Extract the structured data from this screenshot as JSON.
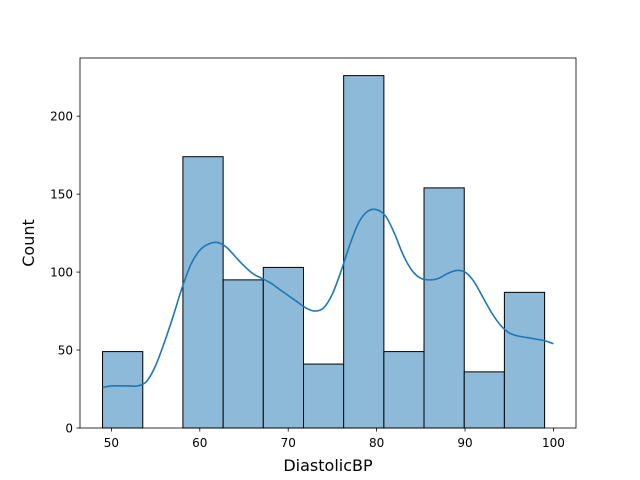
{
  "chart_data": {
    "type": "bar",
    "subtype": "histogram-with-kde",
    "xlabel": "DiastolicBP",
    "ylabel": "Count",
    "xlim": [
      46.45,
      102.55
    ],
    "ylim": [
      0,
      237.3
    ],
    "x_ticks": [
      50,
      60,
      70,
      80,
      90,
      100
    ],
    "y_ticks": [
      0,
      50,
      100,
      150,
      200
    ],
    "bins": [
      {
        "start": 49.0,
        "end": 53.55,
        "count": 49
      },
      {
        "start": 53.55,
        "end": 58.09,
        "count": 0
      },
      {
        "start": 58.09,
        "end": 62.64,
        "count": 174
      },
      {
        "start": 62.64,
        "end": 67.18,
        "count": 95
      },
      {
        "start": 67.18,
        "end": 71.73,
        "count": 103
      },
      {
        "start": 71.73,
        "end": 76.27,
        "count": 41
      },
      {
        "start": 76.27,
        "end": 80.82,
        "count": 226
      },
      {
        "start": 80.82,
        "end": 85.36,
        "count": 49
      },
      {
        "start": 85.36,
        "end": 89.91,
        "count": 154
      },
      {
        "start": 89.91,
        "end": 94.45,
        "count": 36
      },
      {
        "start": 94.45,
        "end": 99.0,
        "count": 87
      }
    ],
    "kde": {
      "x": [
        49,
        50,
        51,
        52,
        53,
        54,
        55,
        56,
        57,
        58,
        59,
        60,
        61,
        62,
        63,
        64,
        65,
        66,
        67,
        68,
        69,
        70,
        71,
        72,
        73,
        74,
        75,
        76,
        77,
        78,
        79,
        80,
        81,
        82,
        83,
        84,
        85,
        86,
        87,
        88,
        89,
        90,
        91,
        92,
        93,
        94,
        95,
        96,
        97,
        98,
        99,
        100
      ],
      "y": [
        26,
        27,
        27,
        27,
        27,
        30,
        40,
        55,
        72,
        90,
        105,
        114,
        118,
        119,
        116,
        110,
        104,
        99,
        96,
        93,
        89,
        85,
        81,
        77,
        75,
        77,
        86,
        101,
        118,
        132,
        139,
        140,
        136,
        125,
        111,
        101,
        96,
        95,
        96,
        99,
        101,
        100,
        94,
        84,
        74,
        66,
        61,
        59,
        58,
        57,
        56,
        54
      ]
    },
    "colors": {
      "bar_fill": "#8ebad9",
      "bar_edge": "#000000",
      "kde_line": "#1f77b4"
    },
    "grid": false,
    "legend": "none"
  }
}
